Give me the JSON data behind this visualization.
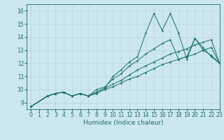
{
  "xlabel": "Humidex (Indice chaleur)",
  "xlim": [
    -0.5,
    23
  ],
  "ylim": [
    8.5,
    16.5
  ],
  "yticks": [
    9,
    10,
    11,
    12,
    13,
    14,
    15,
    16
  ],
  "xticks": [
    0,
    1,
    2,
    3,
    4,
    5,
    6,
    7,
    8,
    9,
    10,
    11,
    12,
    13,
    14,
    15,
    16,
    17,
    18,
    19,
    20,
    21,
    22,
    23
  ],
  "bg_color": "#cce8ee",
  "line_color": "#1a6e64",
  "grid_color": "#b8d4da",
  "lines": [
    {
      "x": [
        0,
        2,
        3,
        4,
        5,
        6,
        7,
        8,
        9,
        10,
        11,
        12,
        13,
        14,
        15,
        16,
        17,
        18,
        19,
        20,
        21,
        22,
        23
      ],
      "y": [
        8.7,
        9.5,
        9.7,
        9.8,
        9.5,
        9.7,
        9.5,
        9.8,
        10.1,
        11.0,
        11.5,
        12.1,
        12.5,
        14.3,
        15.8,
        14.5,
        15.8,
        14.3,
        12.3,
        13.9,
        13.2,
        12.5,
        12.0
      ]
    },
    {
      "x": [
        0,
        2,
        3,
        4,
        5,
        6,
        7,
        8,
        9,
        10,
        11,
        12,
        13,
        14,
        15,
        16,
        17,
        18,
        19,
        20,
        21,
        22,
        23
      ],
      "y": [
        8.7,
        9.5,
        9.7,
        9.8,
        9.5,
        9.7,
        9.5,
        10.0,
        10.2,
        10.8,
        11.2,
        11.8,
        12.2,
        12.7,
        13.1,
        13.5,
        13.8,
        12.3,
        12.5,
        13.9,
        13.0,
        12.6,
        12.0
      ]
    },
    {
      "x": [
        0,
        2,
        3,
        4,
        5,
        6,
        7,
        8,
        9,
        10,
        11,
        12,
        13,
        14,
        15,
        16,
        17,
        18,
        19,
        20,
        21,
        22,
        23
      ],
      "y": [
        8.7,
        9.5,
        9.7,
        9.8,
        9.5,
        9.7,
        9.5,
        9.8,
        10.1,
        10.4,
        10.7,
        11.1,
        11.5,
        11.8,
        12.1,
        12.4,
        12.7,
        12.9,
        13.1,
        13.4,
        13.6,
        13.8,
        12.0
      ]
    },
    {
      "x": [
        0,
        2,
        3,
        4,
        5,
        6,
        7,
        8,
        9,
        10,
        11,
        12,
        13,
        14,
        15,
        16,
        17,
        18,
        19,
        20,
        21,
        22,
        23
      ],
      "y": [
        8.7,
        9.5,
        9.7,
        9.8,
        9.5,
        9.7,
        9.5,
        9.7,
        10.0,
        10.2,
        10.5,
        10.8,
        11.0,
        11.3,
        11.6,
        11.9,
        12.1,
        12.3,
        12.5,
        12.7,
        13.0,
        13.2,
        12.0
      ]
    }
  ]
}
